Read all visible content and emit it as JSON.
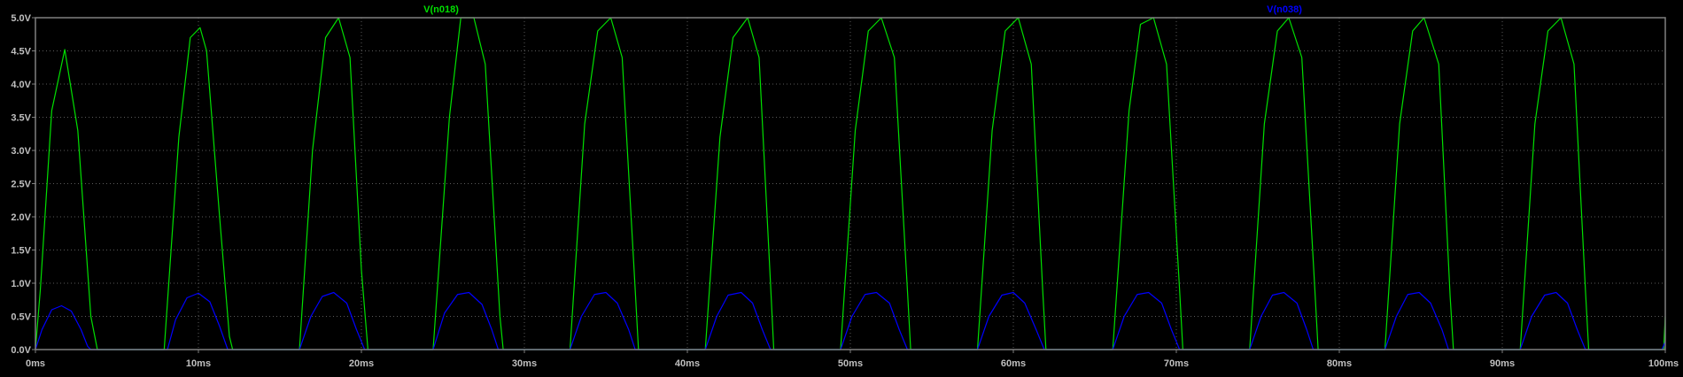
{
  "window": {
    "background": "#000000",
    "frame_color": "#808080",
    "grid_color": "#5a5a5a",
    "tick_label_color": "#c0c0c0"
  },
  "chart_data": {
    "type": "line",
    "grid": true,
    "legend_placement": "top",
    "xlim": [
      0,
      100
    ],
    "ylim": [
      0,
      5
    ],
    "x_unit": "ms",
    "y_unit": "V",
    "x_ticks": [
      "0ms",
      "10ms",
      "20ms",
      "30ms",
      "40ms",
      "50ms",
      "60ms",
      "70ms",
      "80ms",
      "90ms",
      "100ms"
    ],
    "y_ticks": [
      "0.0V",
      "0.5V",
      "1.0V",
      "1.5V",
      "2.0V",
      "2.5V",
      "3.0V",
      "3.5V",
      "4.0V",
      "4.5V",
      "5.0V"
    ],
    "series": [
      {
        "name": "V(n018)",
        "color": "#00e000",
        "x": [
          0,
          0.3,
          1.0,
          1.8,
          2.6,
          3.4,
          3.8,
          7.9,
          8.8,
          9.5,
          10.1,
          10.5,
          11.3,
          11.9,
          12.1,
          16.2,
          17.0,
          17.8,
          18.6,
          19.3,
          20.0,
          20.4,
          24.4,
          25.4,
          26.1,
          26.9,
          27.6,
          28.5,
          28.7,
          32.8,
          33.7,
          34.5,
          35.3,
          36.0,
          36.8,
          37.0,
          41.1,
          42.0,
          42.8,
          43.7,
          44.4,
          45.1,
          45.3,
          49.4,
          50.3,
          51.1,
          51.9,
          52.7,
          53.5,
          53.7,
          57.8,
          58.7,
          59.5,
          60.3,
          61.1,
          61.8,
          62.0,
          66.1,
          67.1,
          67.8,
          68.6,
          69.4,
          70.2,
          70.4,
          74.5,
          75.4,
          76.2,
          76.9,
          77.7,
          78.5,
          78.7,
          82.8,
          83.7,
          84.5,
          85.2,
          86.1,
          86.8,
          87.0,
          91.1,
          92.0,
          92.8,
          93.6,
          94.4,
          95.1,
          95.3,
          99.9,
          100
        ],
        "y": [
          0.0,
          0.9,
          3.6,
          4.52,
          3.3,
          0.5,
          0.0,
          0.0,
          3.2,
          4.7,
          4.85,
          4.5,
          2.0,
          0.2,
          0.0,
          0.0,
          3.0,
          4.7,
          5.0,
          4.4,
          1.2,
          0.0,
          0.0,
          3.5,
          5.0,
          5.0,
          4.3,
          0.5,
          0.0,
          0.0,
          3.4,
          4.8,
          5.0,
          4.4,
          0.9,
          0.0,
          0.0,
          3.2,
          4.7,
          5.0,
          4.4,
          1.0,
          0.0,
          0.0,
          3.3,
          4.8,
          5.0,
          4.4,
          0.9,
          0.0,
          0.0,
          3.3,
          4.8,
          5.0,
          4.3,
          0.9,
          0.0,
          0.0,
          3.6,
          4.9,
          5.0,
          4.3,
          0.9,
          0.0,
          0.0,
          3.4,
          4.8,
          5.0,
          4.4,
          0.9,
          0.0,
          0.0,
          3.4,
          4.8,
          5.0,
          4.3,
          0.8,
          0.0,
          0.0,
          3.4,
          4.8,
          5.0,
          4.3,
          0.9,
          0.0,
          0.0,
          0.5
        ]
      },
      {
        "name": "V(n038)",
        "color": "#0000ff",
        "x": [
          0,
          0.4,
          1.0,
          1.6,
          2.2,
          2.8,
          3.2,
          3.4,
          8.1,
          8.6,
          9.3,
          10.0,
          10.7,
          11.3,
          11.8,
          16.2,
          16.9,
          17.6,
          18.3,
          19.1,
          19.7,
          20.2,
          24.4,
          25.1,
          25.9,
          26.6,
          27.4,
          28.0,
          28.4,
          32.8,
          33.5,
          34.3,
          35.0,
          35.7,
          36.4,
          36.8,
          41.1,
          41.8,
          42.5,
          43.3,
          44.0,
          44.6,
          45.1,
          49.4,
          50.1,
          50.9,
          51.6,
          52.4,
          53.0,
          53.5,
          57.8,
          58.5,
          59.3,
          60.0,
          60.7,
          61.4,
          61.9,
          66.1,
          66.8,
          67.6,
          68.3,
          69.1,
          69.7,
          70.2,
          74.5,
          75.2,
          75.9,
          76.6,
          77.4,
          78.0,
          78.4,
          82.8,
          83.5,
          84.2,
          84.9,
          85.6,
          86.3,
          86.7,
          91.1,
          91.8,
          92.6,
          93.3,
          94.0,
          94.6,
          95.1,
          99.8,
          100
        ],
        "y": [
          0.0,
          0.3,
          0.6,
          0.66,
          0.58,
          0.3,
          0.05,
          0.0,
          0.0,
          0.45,
          0.78,
          0.85,
          0.72,
          0.35,
          0.0,
          0.0,
          0.5,
          0.8,
          0.86,
          0.7,
          0.3,
          0.0,
          0.0,
          0.55,
          0.83,
          0.86,
          0.68,
          0.3,
          0.0,
          0.0,
          0.5,
          0.83,
          0.86,
          0.7,
          0.3,
          0.0,
          0.0,
          0.5,
          0.82,
          0.86,
          0.7,
          0.3,
          0.0,
          0.0,
          0.5,
          0.83,
          0.86,
          0.7,
          0.3,
          0.0,
          0.0,
          0.5,
          0.82,
          0.86,
          0.7,
          0.3,
          0.0,
          0.0,
          0.5,
          0.83,
          0.86,
          0.7,
          0.3,
          0.0,
          0.0,
          0.5,
          0.82,
          0.86,
          0.7,
          0.3,
          0.0,
          0.0,
          0.5,
          0.83,
          0.86,
          0.7,
          0.3,
          0.0,
          0.0,
          0.5,
          0.82,
          0.86,
          0.7,
          0.3,
          0.0,
          0.0,
          0.12
        ]
      }
    ]
  }
}
